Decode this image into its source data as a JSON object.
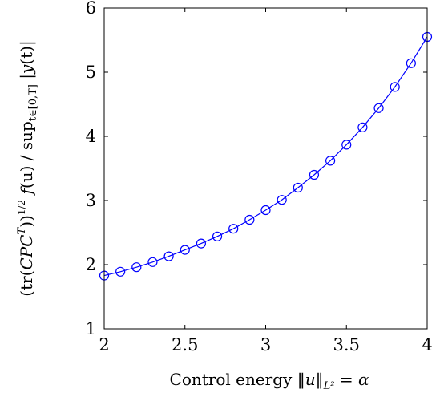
{
  "chart_data": {
    "type": "line",
    "title": "",
    "xlabel": "Control energy ‖u‖L² = α",
    "xlabel_parts": {
      "prefix": "Control energy ",
      "open_norm": "‖",
      "var": "u",
      "close_norm": "‖",
      "sub": "L²",
      "eq": " = ",
      "alpha": "α"
    },
    "ylabel": "(tr(CPC^T))^(1/2) f(u) / sup_{t∈[0,T]} |y(t)|",
    "ylabel_parts": {
      "open": "(tr(",
      "cpc": "CPC",
      "sup_t": "T",
      "close": "))",
      "half": "1/2",
      "f": " f",
      "fu": "(u)",
      "slash": " / sup",
      "sub": "t∈[0,T]",
      "abs_open": " |",
      "y": "y",
      "yt": "(t)",
      "abs_close": "|"
    },
    "xlim": [
      2,
      4
    ],
    "ylim": [
      1,
      6
    ],
    "xticks": [
      "2",
      "2.5",
      "3",
      "3.5",
      "4"
    ],
    "yticks": [
      "1",
      "2",
      "3",
      "4",
      "5",
      "6"
    ],
    "grid": false,
    "series": [
      {
        "color": "#0000ff",
        "marker": "circle",
        "x": [
          2.0,
          2.1,
          2.2,
          2.3,
          2.4,
          2.5,
          2.6,
          2.7,
          2.8,
          2.9,
          3.0,
          3.1,
          3.2,
          3.3,
          3.4,
          3.5,
          3.6,
          3.7,
          3.8,
          3.9,
          4.0
        ],
        "y": [
          1.83,
          1.89,
          1.96,
          2.04,
          2.13,
          2.23,
          2.33,
          2.44,
          2.56,
          2.7,
          2.85,
          3.01,
          3.2,
          3.4,
          3.62,
          3.87,
          4.14,
          4.44,
          4.77,
          5.14,
          5.55
        ]
      }
    ]
  }
}
